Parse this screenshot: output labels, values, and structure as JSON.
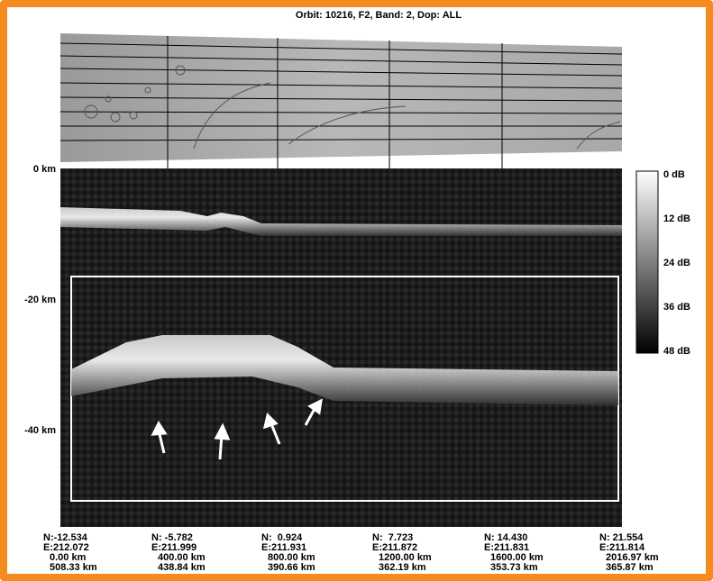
{
  "title": "Orbit: 10216, F2, Band: 2, Dop: ALL",
  "depth_labels": [
    "0 km",
    "-20 km",
    "-40 km"
  ],
  "colorbar_labels": [
    "0 dB",
    "12 dB",
    "24 dB",
    "36 dB",
    "48 dB"
  ],
  "columns": [
    {
      "lat": "N:-12.534",
      "lon": "E:212.072",
      "distance": "0.00 km",
      "altitude": "508.33 km"
    },
    {
      "lat": "N: -5.782",
      "lon": "E:211.999",
      "distance": "400.00 km",
      "altitude": "438.84 km"
    },
    {
      "lat": "N:  0.924",
      "lon": "E:211.931",
      "distance": "800.00 km",
      "altitude": "390.66 km"
    },
    {
      "lat": "N:  7.723",
      "lon": "E:211.872",
      "distance": "1200.00 km",
      "altitude": "362.19 km"
    },
    {
      "lat": "N: 14.430",
      "lon": "E:211.831",
      "distance": "1600.00 km",
      "altitude": "353.73 km"
    },
    {
      "lat": "N: 21.554",
      "lon": "E:211.814",
      "distance": "2016.97 km",
      "altitude": "365.87 km"
    }
  ]
}
